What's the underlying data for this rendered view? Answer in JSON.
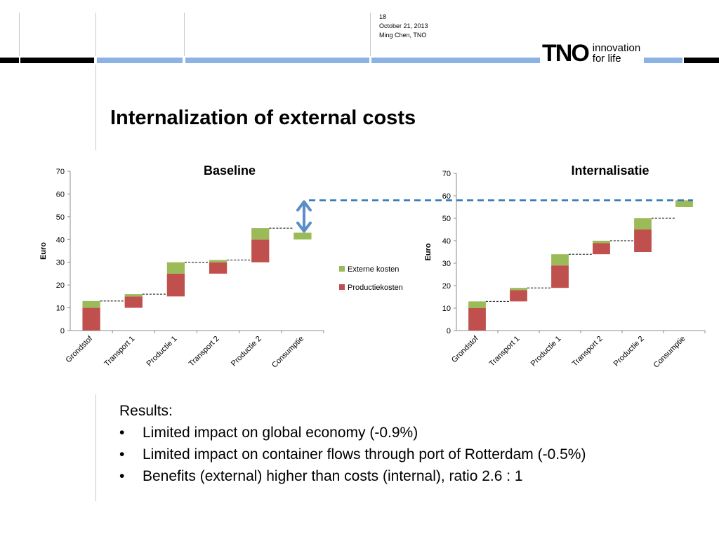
{
  "header": {
    "slide_number": "18",
    "date": "October 21, 2013",
    "author": "Ming Chen, TNO",
    "logo_mark": "TNO",
    "tagline_line1": "innovation",
    "tagline_line2": "for life"
  },
  "title": "Internalization of external costs",
  "colors": {
    "productie": "#c0504d",
    "externe": "#9bbb59",
    "highlight": "#2e75b6",
    "band_gray": "#a6a6a6",
    "band_blue": "#8db3e2"
  },
  "legend": {
    "externe": "Externe kosten",
    "productie": "Productiekosten"
  },
  "chart_data": [
    {
      "type": "bar",
      "subtype": "waterfall-stacked",
      "title": "Baseline",
      "ylabel": "Euro",
      "xlabel": "",
      "ylim": [
        0,
        70
      ],
      "yticks": [
        0,
        10,
        20,
        30,
        40,
        50,
        60,
        70
      ],
      "categories": [
        "Grondstof",
        "Transport 1",
        "Productie 1",
        "Transport 2",
        "Productie 2",
        "Consumptie"
      ],
      "base": [
        0,
        10,
        15,
        25,
        30,
        40
      ],
      "series": [
        {
          "name": "Productiekosten",
          "values": [
            10,
            5,
            10,
            5,
            10,
            0
          ]
        },
        {
          "name": "Externe kosten",
          "values": [
            3,
            1,
            5,
            1,
            5,
            3
          ]
        }
      ],
      "legend_position": "right"
    },
    {
      "type": "bar",
      "subtype": "waterfall-stacked",
      "title": "Internalisatie",
      "ylabel": "Euro",
      "xlabel": "",
      "ylim": [
        0,
        70
      ],
      "yticks": [
        0,
        10,
        20,
        30,
        40,
        50,
        60,
        70
      ],
      "categories": [
        "Grondstof",
        "Transport 1",
        "Productie 1",
        "Transport 2",
        "Productie 2",
        "Consumptie"
      ],
      "base": [
        0,
        13,
        19,
        34,
        35,
        55
      ],
      "series": [
        {
          "name": "Productiekosten",
          "values": [
            10,
            5,
            10,
            5,
            10,
            0
          ]
        },
        {
          "name": "Externe kosten",
          "values": [
            3,
            1,
            5,
            1,
            5,
            3
          ]
        }
      ]
    }
  ],
  "results": {
    "heading": "Results:",
    "bullets": [
      "Limited impact on global economy (-0.9%)",
      "Limited impact on container flows through port of Rotterdam (-0.5%)",
      "Benefits (external) higher than costs (internal), ratio 2.6 : 1"
    ]
  }
}
